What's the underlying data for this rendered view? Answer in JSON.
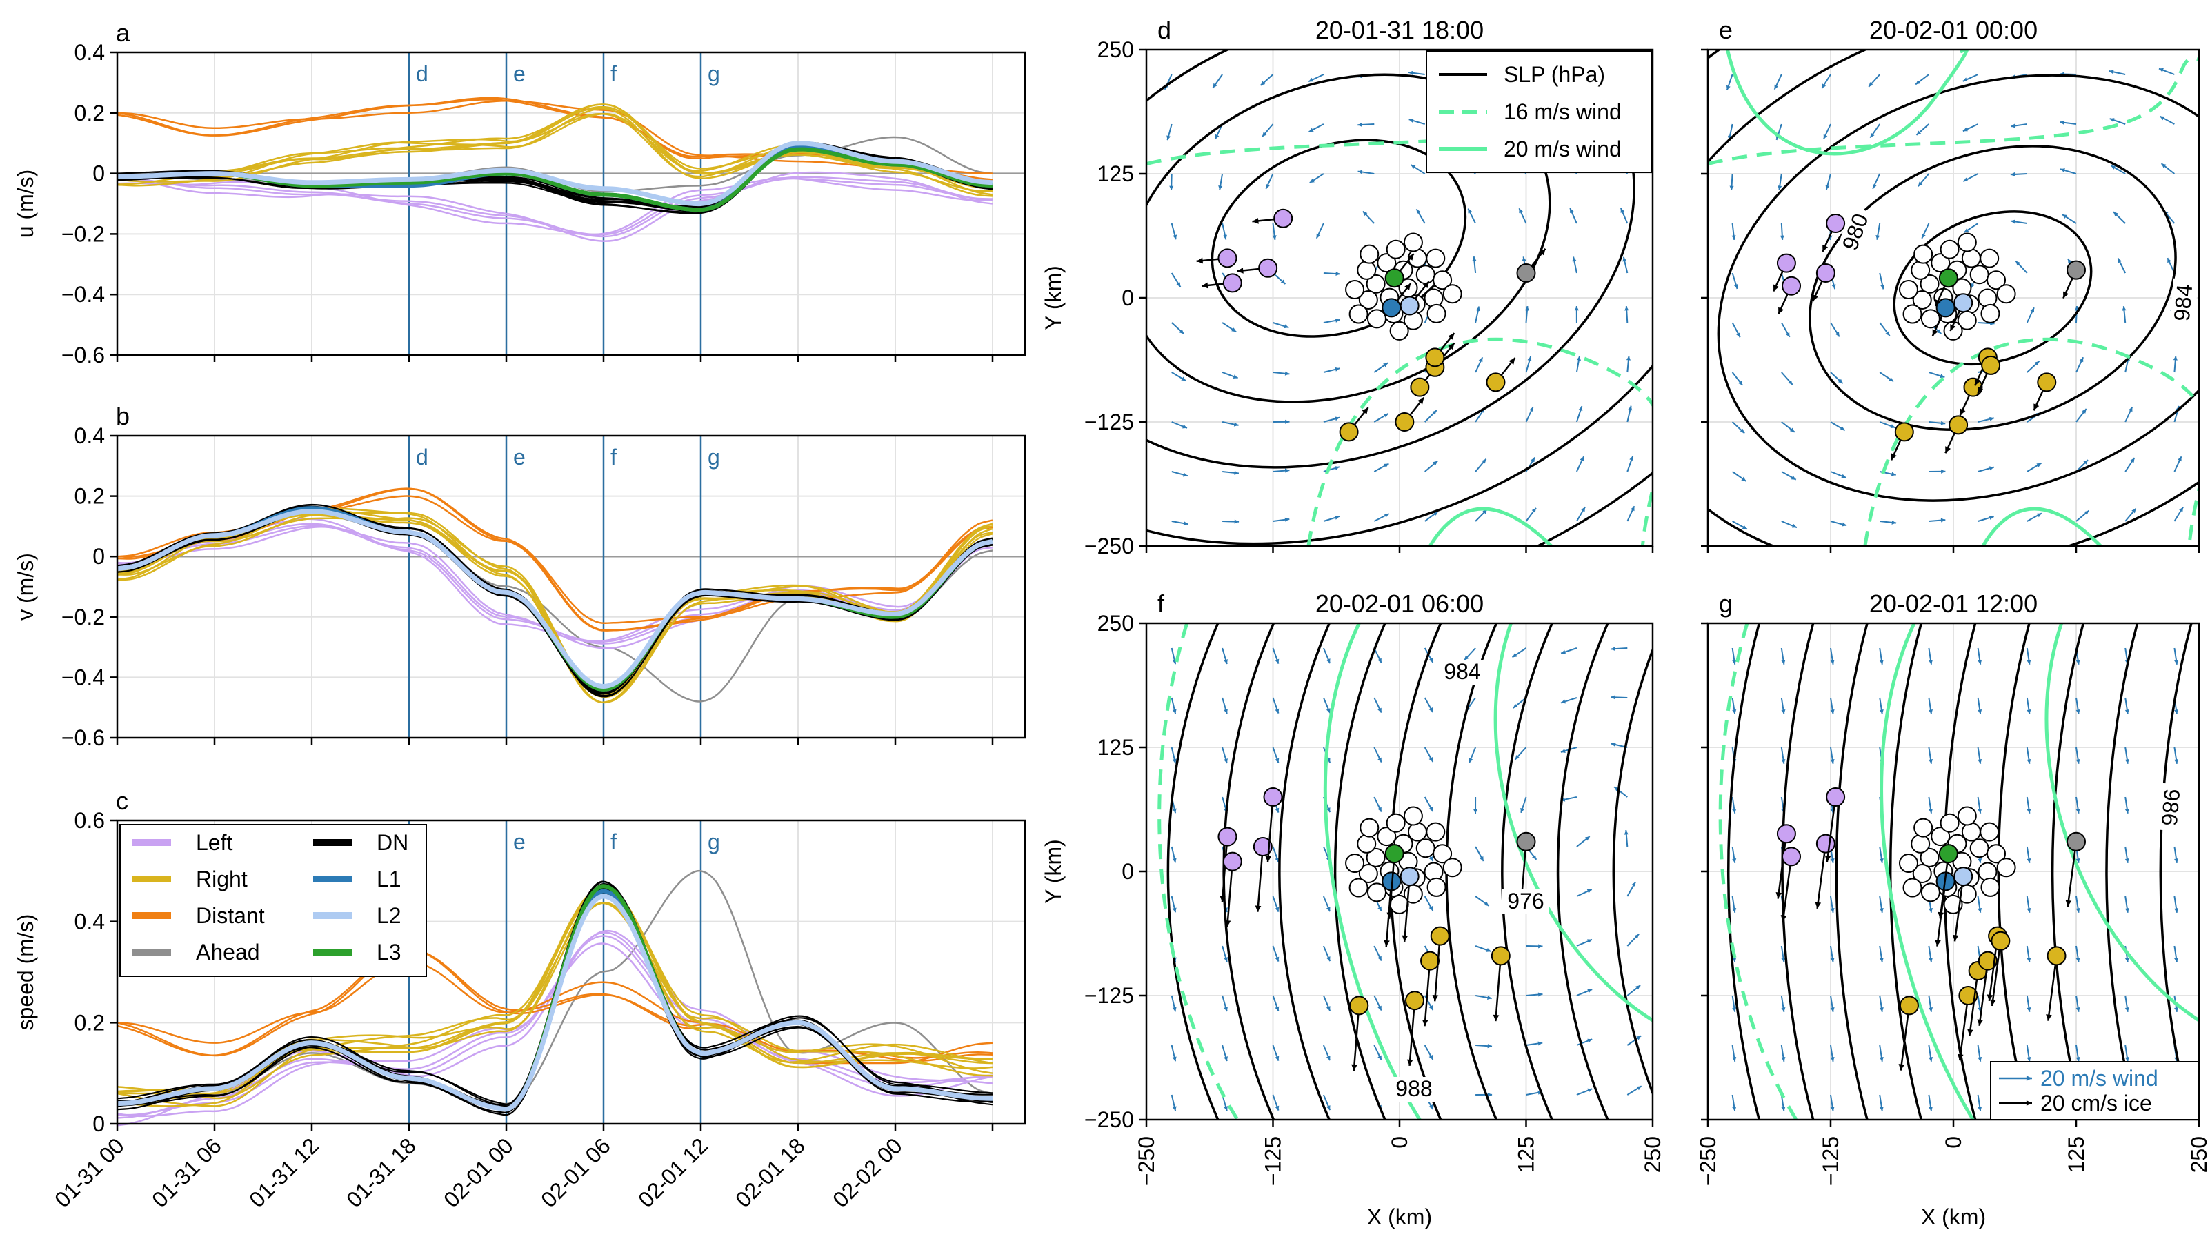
{
  "colors": {
    "Left": "#c9a2f2",
    "Right": "#d9b41e",
    "Distant": "#f07f12",
    "Ahead": "#8f8f8f",
    "DN": "#000000",
    "L1": "#2c7bb6",
    "L2": "#aecbf2",
    "L3": "#2ca02c",
    "event_line": "#2b6ea0",
    "wind_contour": "#5cf0a0",
    "wind_arrow": "#2c7bb6"
  },
  "chart_data": [
    {
      "panel": "a",
      "type": "line",
      "ylabel": "u (m/s)",
      "ylim": [
        -0.6,
        0.4
      ],
      "yticks": [
        "0.4",
        "0.2",
        "0",
        "−0.2",
        "−0.4",
        "−0.6"
      ],
      "events": [
        "d",
        "e",
        "f",
        "g"
      ],
      "x_hours": [
        0,
        6,
        12,
        18,
        24,
        30,
        36,
        42,
        48,
        54
      ],
      "series": [
        {
          "name": "Left",
          "values": [
            -0.01,
            -0.04,
            -0.07,
            -0.1,
            -0.14,
            -0.2,
            -0.08,
            -0.02,
            -0.03,
            -0.08
          ]
        },
        {
          "name": "Right",
          "values": [
            -0.02,
            0.0,
            0.05,
            0.08,
            0.1,
            0.22,
            0.0,
            0.07,
            0.02,
            -0.05
          ]
        },
        {
          "name": "Distant",
          "values": [
            0.2,
            0.15,
            0.18,
            0.2,
            0.24,
            0.21,
            0.06,
            0.04,
            0.02,
            0.0
          ]
        },
        {
          "name": "Ahead",
          "values": [
            0.0,
            -0.02,
            -0.03,
            -0.02,
            0.02,
            -0.06,
            -0.04,
            0.06,
            0.12,
            0.0
          ]
        },
        {
          "name": "DN",
          "values": [
            -0.01,
            0.0,
            -0.04,
            -0.03,
            -0.02,
            -0.09,
            -0.12,
            0.09,
            0.04,
            -0.04
          ]
        },
        {
          "name": "L1",
          "values": [
            -0.01,
            0.0,
            -0.04,
            -0.04,
            0.0,
            -0.07,
            -0.12,
            0.09,
            0.03,
            -0.04
          ]
        },
        {
          "name": "L2",
          "values": [
            -0.01,
            0.0,
            -0.03,
            -0.02,
            0.01,
            -0.05,
            -0.1,
            0.1,
            0.04,
            -0.03
          ]
        },
        {
          "name": "L3",
          "values": [
            -0.01,
            0.0,
            -0.04,
            -0.03,
            0.0,
            -0.07,
            -0.12,
            0.08,
            0.03,
            -0.04
          ]
        }
      ]
    },
    {
      "panel": "b",
      "type": "line",
      "ylabel": "v (m/s)",
      "ylim": [
        -0.6,
        0.4
      ],
      "yticks": [
        "0.4",
        "0.2",
        "0",
        "−0.2",
        "−0.4",
        "−0.6"
      ],
      "events": [
        "d",
        "e",
        "f",
        "g"
      ],
      "x_hours": [
        0,
        6,
        12,
        18,
        24,
        30,
        36,
        42,
        48,
        54
      ],
      "series": [
        {
          "name": "Left",
          "values": [
            -0.02,
            0.05,
            0.1,
            0.02,
            -0.2,
            -0.28,
            -0.2,
            -0.12,
            -0.18,
            0.05
          ]
        },
        {
          "name": "Right",
          "values": [
            -0.06,
            0.06,
            0.14,
            0.12,
            -0.05,
            -0.46,
            -0.14,
            -0.12,
            -0.2,
            0.1
          ]
        },
        {
          "name": "Distant",
          "values": [
            0.0,
            0.08,
            0.15,
            0.2,
            0.05,
            -0.22,
            -0.2,
            -0.14,
            -0.12,
            0.12
          ]
        },
        {
          "name": "Ahead",
          "values": [
            -0.04,
            0.06,
            0.14,
            0.08,
            -0.1,
            -0.3,
            -0.48,
            -0.14,
            -0.2,
            0.02
          ]
        },
        {
          "name": "DN",
          "values": [
            -0.04,
            0.07,
            0.16,
            0.08,
            -0.12,
            -0.45,
            -0.12,
            -0.14,
            -0.2,
            0.05
          ]
        },
        {
          "name": "L1",
          "values": [
            -0.04,
            0.07,
            0.16,
            0.08,
            -0.12,
            -0.44,
            -0.12,
            -0.14,
            -0.2,
            0.05
          ]
        },
        {
          "name": "L2",
          "values": [
            -0.04,
            0.07,
            0.15,
            0.08,
            -0.12,
            -0.43,
            -0.12,
            -0.14,
            -0.19,
            0.05
          ]
        },
        {
          "name": "L3",
          "values": [
            -0.04,
            0.07,
            0.15,
            0.08,
            -0.12,
            -0.44,
            -0.12,
            -0.14,
            -0.2,
            0.05
          ]
        }
      ]
    },
    {
      "panel": "c",
      "type": "line",
      "ylabel": "speed (m/s)",
      "ylim": [
        0.0,
        0.6
      ],
      "yticks": [
        "0.6",
        "0.4",
        "0.2",
        "0"
      ],
      "events": [
        "d",
        "e",
        "f",
        "g"
      ],
      "x_hours": [
        0,
        6,
        12,
        18,
        24,
        30,
        36,
        42,
        48,
        54
      ],
      "xtick_labels": [
        "01-31 00",
        "01-31 06",
        "01-31 12",
        "01-31 18",
        "02-01 00",
        "02-01 06",
        "02-01 12",
        "02-01 18",
        "02-02 00"
      ],
      "legend": [
        "Left",
        "Right",
        "Distant",
        "Ahead",
        "DN",
        "L1",
        "L2",
        "L3"
      ],
      "series": [
        {
          "name": "Left",
          "values": [
            0.02,
            0.05,
            0.12,
            0.1,
            0.18,
            0.38,
            0.2,
            0.12,
            0.08,
            0.1
          ]
        },
        {
          "name": "Right",
          "values": [
            0.06,
            0.06,
            0.15,
            0.15,
            0.2,
            0.46,
            0.2,
            0.12,
            0.14,
            0.12
          ]
        },
        {
          "name": "Distant",
          "values": [
            0.2,
            0.16,
            0.22,
            0.32,
            0.22,
            0.28,
            0.2,
            0.12,
            0.12,
            0.16
          ]
        },
        {
          "name": "Ahead",
          "values": [
            0.04,
            0.06,
            0.14,
            0.08,
            0.04,
            0.3,
            0.5,
            0.14,
            0.2,
            0.06
          ]
        },
        {
          "name": "DN",
          "values": [
            0.04,
            0.07,
            0.16,
            0.09,
            0.03,
            0.47,
            0.14,
            0.2,
            0.07,
            0.05
          ]
        },
        {
          "name": "L1",
          "values": [
            0.04,
            0.07,
            0.16,
            0.09,
            0.03,
            0.46,
            0.14,
            0.2,
            0.07,
            0.05
          ]
        },
        {
          "name": "L2",
          "values": [
            0.04,
            0.07,
            0.16,
            0.09,
            0.03,
            0.45,
            0.14,
            0.2,
            0.07,
            0.05
          ]
        },
        {
          "name": "L3",
          "values": [
            0.04,
            0.07,
            0.16,
            0.09,
            0.03,
            0.47,
            0.14,
            0.2,
            0.07,
            0.05
          ]
        }
      ]
    },
    {
      "panel": "d",
      "type": "map",
      "title": "20-01-31 18:00",
      "xlabel": "",
      "ylabel": "Y (km)",
      "xlim": [
        -250,
        250
      ],
      "ylim": [
        -250,
        250
      ],
      "yticks": [
        "250",
        "125",
        "0",
        "−125",
        "−250"
      ],
      "legend": [
        "SLP (hPa)",
        "16 m/s wind",
        "20 m/s wind"
      ],
      "low_center_km": [
        -60,
        60
      ],
      "buoys": [
        {
          "group": "Left",
          "points": [
            [
              -170,
              40
            ],
            [
              -165,
              15
            ],
            [
              -130,
              30
            ],
            [
              -115,
              80
            ]
          ]
        },
        {
          "group": "Right",
          "points": [
            [
              -50,
              -135
            ],
            [
              5,
              -125
            ],
            [
              20,
              -90
            ],
            [
              35,
              -70
            ],
            [
              35,
              -60
            ],
            [
              95,
              -85
            ]
          ]
        },
        {
          "group": "Ahead",
          "points": [
            [
              125,
              25
            ]
          ]
        },
        {
          "group": "L1",
          "points": [
            [
              -8,
              -10
            ]
          ]
        },
        {
          "group": "L2",
          "points": [
            [
              10,
              -8
            ]
          ]
        },
        {
          "group": "L3",
          "points": [
            [
              -5,
              20
            ]
          ]
        }
      ]
    },
    {
      "panel": "e",
      "type": "map",
      "title": "20-02-01 00:00",
      "xlim": [
        -250,
        250
      ],
      "ylim": [
        -250,
        250
      ],
      "contour_labels": [
        "980",
        "984"
      ],
      "low_center_km": [
        40,
        10
      ],
      "buoys": [
        {
          "group": "Left",
          "points": [
            [
              -170,
              35
            ],
            [
              -165,
              12
            ],
            [
              -130,
              25
            ],
            [
              -120,
              75
            ]
          ]
        },
        {
          "group": "Right",
          "points": [
            [
              -50,
              -135
            ],
            [
              5,
              -128
            ],
            [
              20,
              -90
            ],
            [
              35,
              -60
            ],
            [
              38,
              -68
            ],
            [
              95,
              -85
            ]
          ]
        },
        {
          "group": "Ahead",
          "points": [
            [
              125,
              28
            ]
          ]
        },
        {
          "group": "L1",
          "points": [
            [
              -8,
              -10
            ]
          ]
        },
        {
          "group": "L2",
          "points": [
            [
              10,
              -5
            ]
          ]
        },
        {
          "group": "L3",
          "points": [
            [
              -5,
              20
            ]
          ]
        }
      ]
    },
    {
      "panel": "f",
      "type": "map",
      "title": "20-02-01 06:00",
      "xlabel": "X (km)",
      "ylabel": "Y (km)",
      "xlim": [
        -250,
        250
      ],
      "ylim": [
        -250,
        250
      ],
      "xticks": [
        "−250",
        "−125",
        "0",
        "125",
        "250"
      ],
      "yticks": [
        "250",
        "125",
        "0",
        "−125",
        "−250"
      ],
      "contour_labels": [
        "984",
        "976",
        "988"
      ],
      "low_center_km": [
        170,
        40
      ],
      "buoys": [
        {
          "group": "Left",
          "points": [
            [
              -170,
              35
            ],
            [
              -165,
              10
            ],
            [
              -135,
              25
            ],
            [
              -125,
              75
            ]
          ]
        },
        {
          "group": "Right",
          "points": [
            [
              -40,
              -135
            ],
            [
              15,
              -130
            ],
            [
              30,
              -90
            ],
            [
              40,
              -65
            ],
            [
              100,
              -85
            ]
          ]
        },
        {
          "group": "Ahead",
          "points": [
            [
              125,
              30
            ]
          ]
        },
        {
          "group": "L1",
          "points": [
            [
              -8,
              -10
            ]
          ]
        },
        {
          "group": "L2",
          "points": [
            [
              10,
              -5
            ]
          ]
        },
        {
          "group": "L3",
          "points": [
            [
              -5,
              18
            ]
          ]
        }
      ]
    },
    {
      "panel": "g",
      "type": "map",
      "title": "20-02-01 12:00",
      "xlabel": "X (km)",
      "xlim": [
        -250,
        250
      ],
      "ylim": [
        -250,
        250
      ],
      "xticks": [
        "−250",
        "−125",
        "0",
        "125",
        "250"
      ],
      "contour_labels": [
        "986"
      ],
      "legend": [
        "20 m/s wind",
        "20 cm/s ice"
      ],
      "buoys": [
        {
          "group": "Left",
          "points": [
            [
              -170,
              38
            ],
            [
              -165,
              15
            ],
            [
              -130,
              28
            ],
            [
              -120,
              75
            ]
          ]
        },
        {
          "group": "Right",
          "points": [
            [
              -45,
              -135
            ],
            [
              15,
              -125
            ],
            [
              25,
              -100
            ],
            [
              35,
              -90
            ],
            [
              45,
              -65
            ],
            [
              48,
              -70
            ],
            [
              105,
              -85
            ]
          ]
        },
        {
          "group": "Ahead",
          "points": [
            [
              125,
              30
            ]
          ]
        },
        {
          "group": "L1",
          "points": [
            [
              -8,
              -10
            ]
          ]
        },
        {
          "group": "L2",
          "points": [
            [
              10,
              -5
            ]
          ]
        },
        {
          "group": "L3",
          "points": [
            [
              -5,
              18
            ]
          ]
        }
      ]
    }
  ]
}
